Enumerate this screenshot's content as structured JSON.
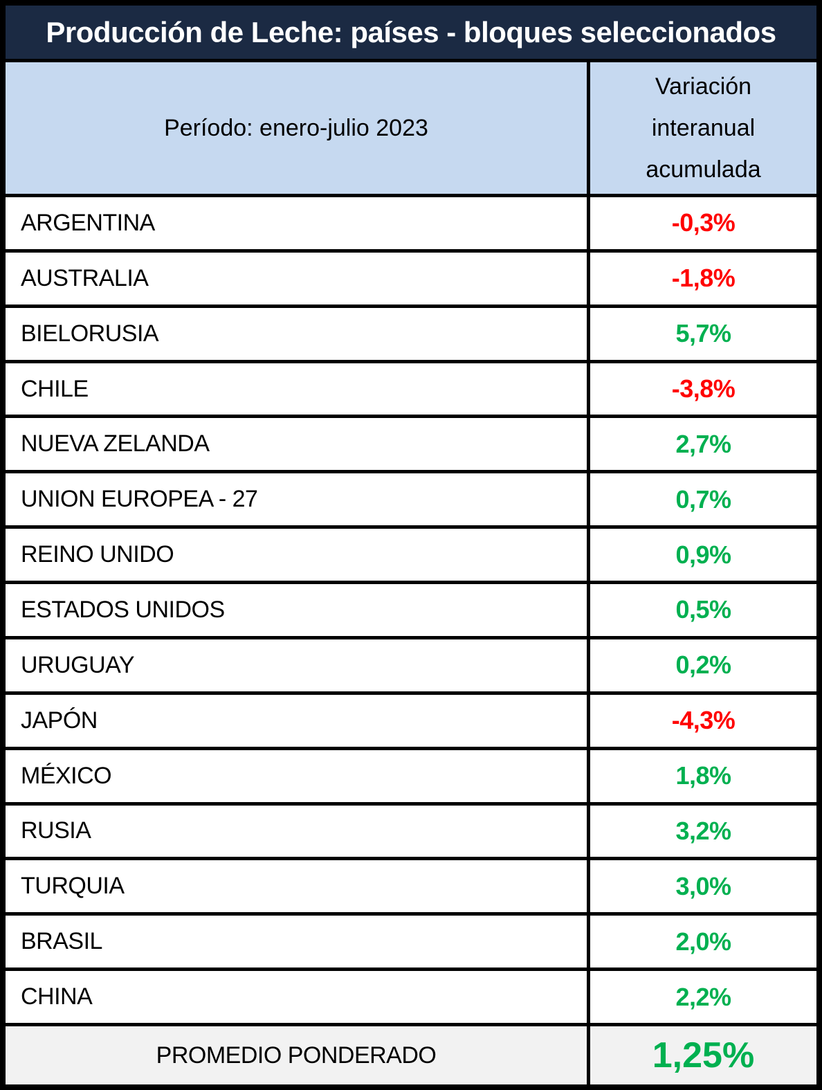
{
  "table": {
    "title": "Producción de Leche: países - bloques seleccionados",
    "period_header": "Período: enero-julio 2023",
    "value_header_lines": [
      "Variación",
      "interanual",
      "acumulada"
    ]
  },
  "colors": {
    "title_background": "#1b2a43",
    "title_text": "#ffffff",
    "subheader_background": "#c6d9f0",
    "negative_value": "#ff0000",
    "positive_value": "#00b050",
    "footer_background": "#f2f2f2",
    "border": "#000000"
  },
  "rows": [
    {
      "country": "ARGENTINA",
      "value": "-0,3%",
      "color": "red"
    },
    {
      "country": "AUSTRALIA",
      "value": "-1,8%",
      "color": "red"
    },
    {
      "country": "BIELORUSIA",
      "value": "5,7%",
      "color": "green"
    },
    {
      "country": "CHILE",
      "value": "-3,8%",
      "color": "red"
    },
    {
      "country": "NUEVA ZELANDA",
      "value": "2,7%",
      "color": "green"
    },
    {
      "country": "UNION EUROPEA - 27",
      "value": "0,7%",
      "color": "green"
    },
    {
      "country": "REINO UNIDO",
      "value": "0,9%",
      "color": "green"
    },
    {
      "country": "ESTADOS UNIDOS",
      "value": "0,5%",
      "color": "green"
    },
    {
      "country": "URUGUAY",
      "value": "0,2%",
      "color": "green"
    },
    {
      "country": "JAPÓN",
      "value": "-4,3%",
      "color": "red"
    },
    {
      "country": "MÉXICO",
      "value": "1,8%",
      "color": "green"
    },
    {
      "country": "RUSIA",
      "value": "3,2%",
      "color": "green"
    },
    {
      "country": "TURQUIA",
      "value": "3,0%",
      "color": "green"
    },
    {
      "country": "BRASIL",
      "value": "2,0%",
      "color": "green"
    },
    {
      "country": "CHINA",
      "value": "2,2%",
      "color": "green"
    }
  ],
  "footer": {
    "label": "PROMEDIO PONDERADO",
    "value": "1,25%",
    "color": "green"
  },
  "chart_data": {
    "type": "table",
    "title": "Producción de Leche: países - bloques seleccionados",
    "columns": [
      "Período: enero-julio 2023",
      "Variación interanual acumulada"
    ],
    "rows": [
      [
        "ARGENTINA",
        "-0,3%"
      ],
      [
        "AUSTRALIA",
        "-1,8%"
      ],
      [
        "BIELORUSIA",
        "5,7%"
      ],
      [
        "CHILE",
        "-3,8%"
      ],
      [
        "NUEVA ZELANDA",
        "2,7%"
      ],
      [
        "UNION EUROPEA - 27",
        "0,7%"
      ],
      [
        "REINO UNIDO",
        "0,9%"
      ],
      [
        "ESTADOS UNIDOS",
        "0,5%"
      ],
      [
        "URUGUAY",
        "0,2%"
      ],
      [
        "JAPÓN",
        "-4,3%"
      ],
      [
        "MÉXICO",
        "1,8%"
      ],
      [
        "RUSIA",
        "3,2%"
      ],
      [
        "TURQUIA",
        "3,0%"
      ],
      [
        "BRASIL",
        "2,0%"
      ],
      [
        "CHINA",
        "2,2%"
      ]
    ],
    "values_numeric_pct": [
      -0.3,
      -1.8,
      5.7,
      -3.8,
      2.7,
      0.7,
      0.9,
      0.5,
      0.2,
      -4.3,
      1.8,
      3.2,
      3.0,
      2.0,
      2.2
    ],
    "footer_row": [
      "PROMEDIO PONDERADO",
      "1,25%"
    ],
    "footer_value_numeric_pct": 1.25,
    "value_color_rule": "negative=red, positive=green"
  }
}
